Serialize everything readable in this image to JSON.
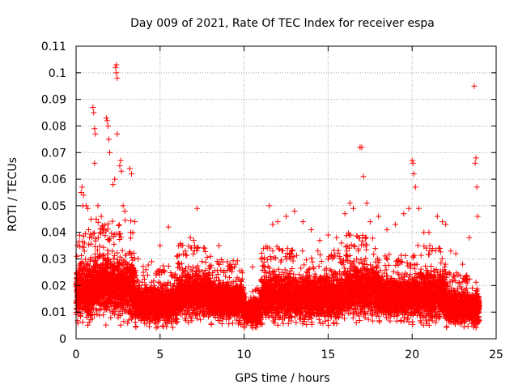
{
  "chart_data": {
    "type": "scatter",
    "title": "Day 009 of 2021, Rate Of TEC Index for receiver espa",
    "xlabel": "GPS time / hours",
    "ylabel": "ROTI / TECUs",
    "xlim": [
      0,
      25
    ],
    "ylim": [
      0,
      0.11
    ],
    "xticks": [
      0,
      5,
      10,
      15,
      20,
      25
    ],
    "xtick_labels": [
      "0",
      "5",
      "10",
      "15",
      "20",
      "25"
    ],
    "yticks": [
      0,
      0.01,
      0.02,
      0.03,
      0.04,
      0.05,
      0.06,
      0.07,
      0.08,
      0.09,
      0.1,
      0.11
    ],
    "ytick_labels": [
      "0",
      "0.01",
      "0.02",
      "0.03",
      "0.04",
      "0.05",
      "0.06",
      "0.07",
      "0.08",
      "0.09",
      "0.1",
      "0.11"
    ],
    "grid": true,
    "marker": "+",
    "series": [
      {
        "name": "ROTI",
        "color": "#ff0000",
        "points": [
          [
            0.05,
            0.031
          ],
          [
            0.1,
            0.016
          ],
          [
            0.2,
            0.012
          ],
          [
            0.3,
            0.055
          ],
          [
            0.35,
            0.057
          ],
          [
            0.4,
            0.05
          ],
          [
            0.45,
            0.054
          ],
          [
            0.5,
            0.036
          ],
          [
            0.6,
            0.05
          ],
          [
            0.7,
            0.049
          ],
          [
            0.75,
            0.041
          ],
          [
            0.8,
            0.038
          ],
          [
            0.9,
            0.045
          ],
          [
            1.0,
            0.087
          ],
          [
            1.05,
            0.085
          ],
          [
            1.1,
            0.079
          ],
          [
            1.15,
            0.077
          ],
          [
            1.1,
            0.066
          ],
          [
            1.2,
            0.045
          ],
          [
            1.3,
            0.05
          ],
          [
            1.5,
            0.046
          ],
          [
            1.6,
            0.04
          ],
          [
            1.8,
            0.083
          ],
          [
            1.85,
            0.082
          ],
          [
            1.9,
            0.08
          ],
          [
            1.95,
            0.075
          ],
          [
            2.0,
            0.07
          ],
          [
            2.2,
            0.058
          ],
          [
            2.3,
            0.06
          ],
          [
            2.35,
            0.102
          ],
          [
            2.4,
            0.103
          ],
          [
            2.4,
            0.1
          ],
          [
            2.45,
            0.098
          ],
          [
            2.45,
            0.077
          ],
          [
            2.6,
            0.065
          ],
          [
            2.65,
            0.067
          ],
          [
            2.7,
            0.063
          ],
          [
            2.8,
            0.05
          ],
          [
            2.9,
            0.048
          ],
          [
            3.2,
            0.064
          ],
          [
            3.3,
            0.062
          ],
          [
            3.5,
            0.044
          ],
          [
            3.7,
            0.03
          ],
          [
            4.0,
            0.025
          ],
          [
            4.5,
            0.029
          ],
          [
            5.0,
            0.035
          ],
          [
            5.5,
            0.042
          ],
          [
            6.0,
            0.031
          ],
          [
            6.5,
            0.033
          ],
          [
            6.8,
            0.038
          ],
          [
            7.0,
            0.037
          ],
          [
            7.2,
            0.049
          ],
          [
            7.5,
            0.029
          ],
          [
            8.0,
            0.031
          ],
          [
            8.5,
            0.035
          ],
          [
            9.0,
            0.029
          ],
          [
            9.5,
            0.028
          ],
          [
            10.0,
            0.006
          ],
          [
            10.5,
            0.027
          ],
          [
            11.0,
            0.03
          ],
          [
            11.5,
            0.05
          ],
          [
            11.7,
            0.043
          ],
          [
            12.0,
            0.044
          ],
          [
            12.5,
            0.046
          ],
          [
            13.0,
            0.048
          ],
          [
            13.5,
            0.044
          ],
          [
            14.0,
            0.041
          ],
          [
            14.5,
            0.037
          ],
          [
            15.0,
            0.039
          ],
          [
            15.5,
            0.038
          ],
          [
            15.8,
            0.036
          ],
          [
            16.0,
            0.047
          ],
          [
            16.3,
            0.051
          ],
          [
            16.5,
            0.049
          ],
          [
            16.9,
            0.072
          ],
          [
            17.0,
            0.072
          ],
          [
            17.1,
            0.061
          ],
          [
            17.3,
            0.051
          ],
          [
            17.5,
            0.044
          ],
          [
            18.0,
            0.046
          ],
          [
            18.5,
            0.041
          ],
          [
            19.0,
            0.043
          ],
          [
            19.5,
            0.047
          ],
          [
            19.8,
            0.049
          ],
          [
            20.0,
            0.067
          ],
          [
            20.05,
            0.066
          ],
          [
            20.1,
            0.062
          ],
          [
            20.2,
            0.057
          ],
          [
            20.4,
            0.049
          ],
          [
            20.7,
            0.04
          ],
          [
            21.0,
            0.04
          ],
          [
            21.5,
            0.046
          ],
          [
            21.8,
            0.044
          ],
          [
            22.0,
            0.043
          ],
          [
            22.3,
            0.033
          ],
          [
            22.6,
            0.032
          ],
          [
            23.0,
            0.028
          ],
          [
            23.4,
            0.038
          ],
          [
            23.7,
            0.095
          ],
          [
            23.75,
            0.066
          ],
          [
            23.8,
            0.068
          ],
          [
            23.85,
            0.057
          ],
          [
            23.9,
            0.046
          ]
        ],
        "dense_band": {
          "note": "dense scatter of many more points, value ranges per hour",
          "segments": [
            {
              "x": [
                0.0,
                1.0
              ],
              "y": [
                0.005,
                0.04
              ]
            },
            {
              "x": [
                1.0,
                3.5
              ],
              "y": [
                0.005,
                0.045
              ]
            },
            {
              "x": [
                3.5,
                6.0
              ],
              "y": [
                0.004,
                0.028
              ]
            },
            {
              "x": [
                6.0,
                8.0
              ],
              "y": [
                0.006,
                0.036
              ]
            },
            {
              "x": [
                8.0,
                10.0
              ],
              "y": [
                0.005,
                0.03
              ]
            },
            {
              "x": [
                10.0,
                11.0
              ],
              "y": [
                0.004,
                0.02
              ]
            },
            {
              "x": [
                11.0,
                14.0
              ],
              "y": [
                0.005,
                0.035
              ]
            },
            {
              "x": [
                14.0,
                16.0
              ],
              "y": [
                0.005,
                0.034
              ]
            },
            {
              "x": [
                16.0,
                18.0
              ],
              "y": [
                0.006,
                0.04
              ]
            },
            {
              "x": [
                18.0,
                20.0
              ],
              "y": [
                0.006,
                0.032
              ]
            },
            {
              "x": [
                20.0,
                22.0
              ],
              "y": [
                0.005,
                0.036
              ]
            },
            {
              "x": [
                22.0,
                24.0
              ],
              "y": [
                0.004,
                0.025
              ]
            }
          ]
        }
      }
    ]
  }
}
